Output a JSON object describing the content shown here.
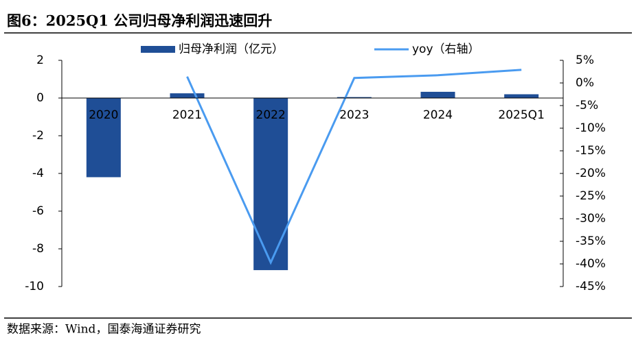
{
  "header": {
    "title": "图6：2025Q1 公司归母净利润迅速回升"
  },
  "chart_data": {
    "type": "bar-line",
    "categories": [
      "2020",
      "2021",
      "2022",
      "2023",
      "2024",
      "2025Q1"
    ],
    "series": [
      {
        "name": "归母净利润（亿元）",
        "type": "bar",
        "color": "#1f4e96",
        "values": [
          -4.2,
          0.25,
          -9.13,
          0.05,
          0.33,
          0.2
        ]
      },
      {
        "name": "yoy（右轴）",
        "type": "line",
        "axis": "y2",
        "color": "#4a9bf0",
        "values": [
          null,
          1.4,
          -39.7,
          1.1,
          1.7,
          2.9
        ]
      }
    ],
    "ylim": [
      -10,
      2
    ],
    "yticks": [
      2,
      0,
      -2,
      -4,
      -6,
      -8,
      -10
    ],
    "y2lim": [
      -45,
      5
    ],
    "y2ticks": [
      {
        "value": 5,
        "label": "5%"
      },
      {
        "value": 0,
        "label": "0%"
      },
      {
        "value": -5,
        "label": "-5%"
      },
      {
        "value": -10,
        "label": "-10%"
      },
      {
        "value": -15,
        "label": "-15%"
      },
      {
        "value": -20,
        "label": "-20%"
      },
      {
        "value": -25,
        "label": "-25%"
      },
      {
        "value": -30,
        "label": "-30%"
      },
      {
        "value": -35,
        "label": "-35%"
      },
      {
        "value": -40,
        "label": "-40%"
      },
      {
        "value": -45,
        "label": "-45%"
      }
    ],
    "legend": "top"
  },
  "footer": {
    "source": "数据来源：Wind，国泰海通证券研究"
  }
}
